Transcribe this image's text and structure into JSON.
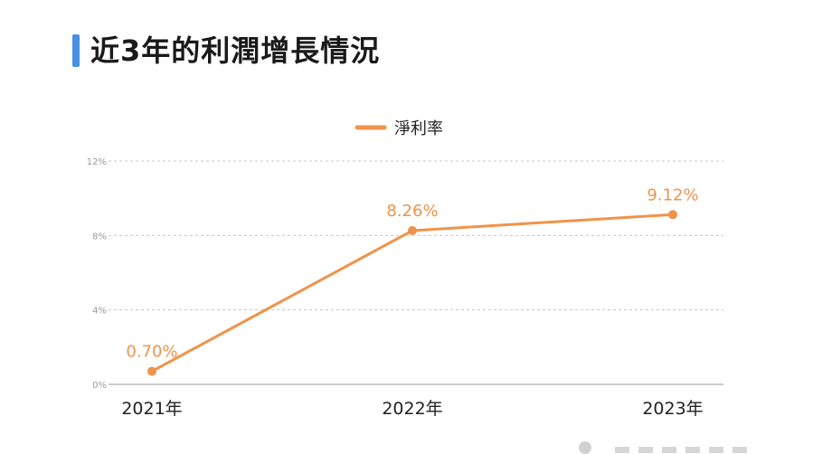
{
  "header": {
    "title": "近3年的利潤增長情況"
  },
  "colors": {
    "accent_bar": "#4a90e2",
    "series": "#f0934a",
    "grid": "#c8c8c8"
  },
  "chart_data": {
    "type": "line",
    "categories": [
      "2021年",
      "2022年",
      "2023年"
    ],
    "series": [
      {
        "name": "淨利率",
        "values": [
          0.7,
          8.26,
          9.12
        ],
        "labels": [
          "0.70%",
          "8.26%",
          "9.12%"
        ]
      }
    ],
    "yticks": [
      "0%",
      "4%",
      "8%",
      "12%"
    ],
    "ylim": [
      0,
      12
    ],
    "grid": true,
    "legend_position": "top-center"
  }
}
